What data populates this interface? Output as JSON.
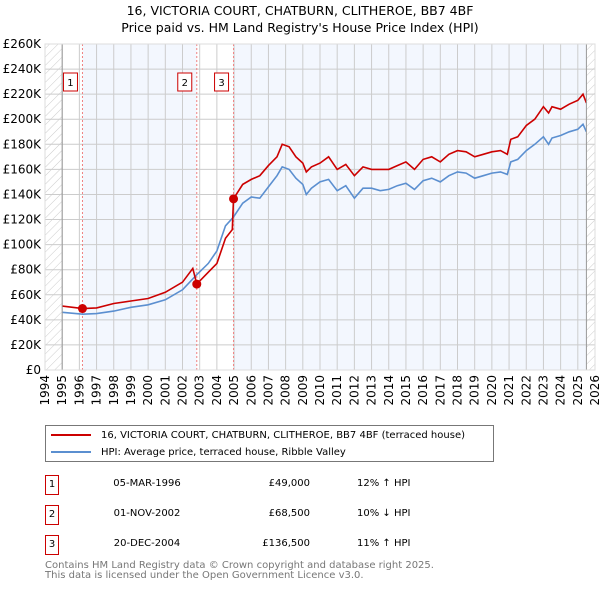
{
  "chart_data": {
    "type": "line",
    "title": "16, VICTORIA COURT, CHATBURN, CLITHEROE, BB7 4BF",
    "subtitle": "Price paid vs. HM Land Registry's House Price Index (HPI)",
    "xlim": [
      1994,
      2026
    ],
    "ylim": [
      0,
      260000
    ],
    "x_ticks": [
      "1994",
      "1995",
      "1996",
      "1997",
      "1998",
      "1999",
      "2000",
      "2001",
      "2002",
      "2003",
      "2004",
      "2005",
      "2006",
      "2007",
      "2008",
      "2009",
      "2010",
      "2011",
      "2012",
      "2013",
      "2014",
      "2015",
      "2016",
      "2017",
      "2018",
      "2019",
      "2020",
      "2021",
      "2022",
      "2023",
      "2024",
      "2025",
      "2026"
    ],
    "y_ticks": [
      "£0",
      "£20K",
      "£40K",
      "£60K",
      "£80K",
      "£100K",
      "£120K",
      "£140K",
      "£160K",
      "£180K",
      "£200K",
      "£220K",
      "£240K",
      "£260K"
    ],
    "grid": true,
    "series": [
      {
        "name": "16, VICTORIA COURT, CHATBURN, CLITHEROE, BB7 4BF (terraced house)",
        "color": "#cc0000",
        "x": [
          1995,
          1996.2,
          1997,
          1998,
          1999,
          2000,
          2001,
          2002,
          2002.6,
          2002.83,
          2003.5,
          2004,
          2004.5,
          2004.9,
          2004.97,
          2005.5,
          2006,
          2006.5,
          2007,
          2007.5,
          2007.8,
          2008.2,
          2008.6,
          2009,
          2009.2,
          2009.5,
          2010,
          2010.5,
          2011,
          2011.5,
          2012,
          2012.5,
          2013,
          2013.5,
          2014,
          2014.5,
          2015,
          2015.5,
          2016,
          2016.5,
          2017,
          2017.5,
          2018,
          2018.5,
          2019,
          2019.5,
          2020,
          2020.5,
          2020.9,
          2021.1,
          2021.5,
          2022,
          2022.5,
          2023,
          2023.3,
          2023.5,
          2024,
          2024.5,
          2025,
          2025.3,
          2025.5
        ],
        "values": [
          51000,
          49000,
          49500,
          53000,
          55000,
          57000,
          62000,
          70000,
          81000,
          68500,
          78000,
          85000,
          105000,
          112000,
          136500,
          148000,
          152000,
          155000,
          163000,
          170000,
          180000,
          178000,
          170000,
          165000,
          158000,
          162000,
          165000,
          170000,
          160000,
          164000,
          155000,
          162000,
          160000,
          160000,
          160000,
          163000,
          166000,
          160000,
          168000,
          170000,
          166000,
          172000,
          175000,
          174000,
          170000,
          172000,
          174000,
          175000,
          172000,
          184000,
          186000,
          195000,
          200000,
          210000,
          205000,
          210000,
          208000,
          212000,
          215000,
          220000,
          213000
        ]
      },
      {
        "name": "HPI: Average price, terraced house, Ribble Valley",
        "color": "#5b8fd0",
        "x": [
          1995,
          1996.2,
          1997,
          1998,
          1999,
          2000,
          2001,
          2002,
          2002.83,
          2003.5,
          2004,
          2004.5,
          2004.97,
          2005.5,
          2006,
          2006.5,
          2007,
          2007.5,
          2007.8,
          2008.2,
          2008.6,
          2009,
          2009.2,
          2009.5,
          2010,
          2010.5,
          2011,
          2011.5,
          2012,
          2012.5,
          2013,
          2013.5,
          2014,
          2014.5,
          2015,
          2015.5,
          2016,
          2016.5,
          2017,
          2017.5,
          2018,
          2018.5,
          2019,
          2019.5,
          2020,
          2020.5,
          2020.9,
          2021.1,
          2021.5,
          2022,
          2022.5,
          2023,
          2023.3,
          2023.5,
          2024,
          2024.5,
          2025,
          2025.3,
          2025.5
        ],
        "values": [
          46000,
          44500,
          45000,
          47000,
          50000,
          52000,
          56000,
          64000,
          76000,
          85000,
          95000,
          115000,
          122000,
          133000,
          138000,
          137000,
          146000,
          155000,
          162000,
          160000,
          153000,
          148000,
          140000,
          145000,
          150000,
          152000,
          143000,
          147000,
          137000,
          145000,
          145000,
          143000,
          144000,
          147000,
          149000,
          144000,
          151000,
          153000,
          150000,
          155000,
          158000,
          157000,
          153000,
          155000,
          157000,
          158000,
          156000,
          166000,
          168000,
          175000,
          180000,
          186000,
          180000,
          185000,
          187000,
          190000,
          192000,
          196000,
          190000
        ]
      }
    ],
    "sales": [
      {
        "label": "1",
        "x": 1996.18,
        "price": 49000
      },
      {
        "label": "2",
        "x": 2002.83,
        "price": 68500
      },
      {
        "label": "3",
        "x": 2004.97,
        "price": 136500
      }
    ],
    "data_end": 2025.5
  },
  "legend": {
    "property": "16, VICTORIA COURT, CHATBURN, CLITHEROE, BB7 4BF (terraced house)",
    "hpi": "HPI: Average price, terraced house, Ribble Valley"
  },
  "transactions": [
    {
      "num": "1",
      "date": "05-MAR-1996",
      "price": "£49,000",
      "hpi": "12% ↑ HPI"
    },
    {
      "num": "2",
      "date": "01-NOV-2002",
      "price": "£68,500",
      "hpi": "10% ↓ HPI"
    },
    {
      "num": "3",
      "date": "20-DEC-2004",
      "price": "£136,500",
      "hpi": "11% ↑ HPI"
    }
  ],
  "footer": {
    "line1": "Contains HM Land Registry data © Crown copyright and database right 2025.",
    "line2": "This data is licensed under the Open Government Licence v3.0."
  }
}
